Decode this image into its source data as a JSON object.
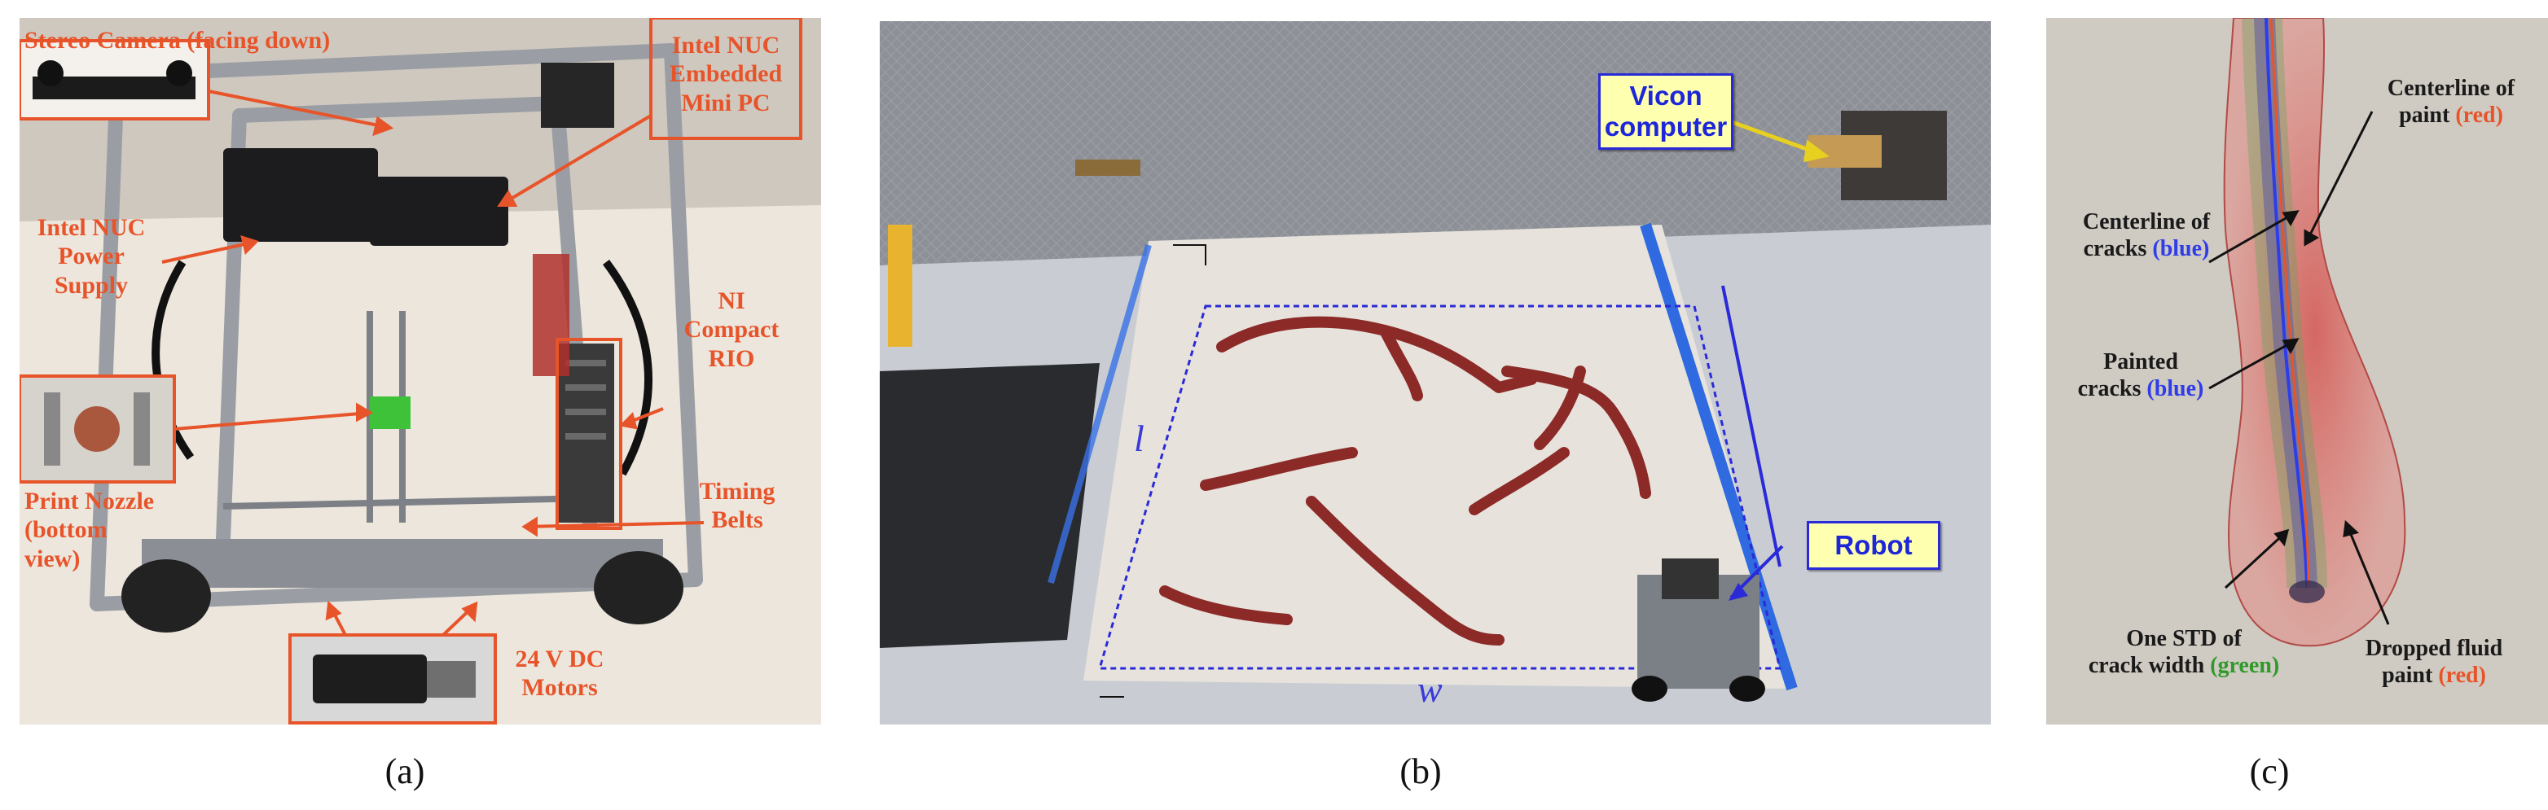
{
  "captions": {
    "a": "(a)",
    "b": "(b)",
    "c": "(c)"
  },
  "panel_a": {
    "labels": {
      "stereo_camera": "Stereo Camera (facing down)",
      "nuc_pc": [
        "Intel NUC",
        "Embedded",
        "Mini PC"
      ],
      "nuc_power": [
        "Intel NUC",
        "Power",
        "Supply"
      ],
      "ni_rio": [
        "NI",
        "Compact",
        "RIO"
      ],
      "print_nozzle": [
        "Print Nozzle",
        "(bottom",
        "view)"
      ],
      "timing_belts": [
        "Timing",
        "Belts"
      ],
      "dc_motors": [
        "24 V DC",
        "Motors"
      ]
    }
  },
  "panel_b": {
    "labels": {
      "vicon": [
        "Vicon",
        "computer"
      ],
      "robot": "Robot",
      "length": "l",
      "width": "w"
    }
  },
  "panel_c": {
    "labels": {
      "centerline_paint_1": "Centerline of",
      "centerline_paint_2": "paint",
      "centerline_paint_color": "(red)",
      "centerline_cracks_1": "Centerline of",
      "centerline_cracks_2": "cracks",
      "centerline_cracks_color": "(blue)",
      "painted_cracks_1": "Painted",
      "painted_cracks_2": "cracks",
      "painted_cracks_color": "(blue)",
      "one_std_1": "One STD of",
      "one_std_2": "crack width",
      "one_std_color": "(green)",
      "dropped_fluid_1": "Dropped fluid",
      "dropped_fluid_2": "paint",
      "dropped_fluid_color": "(red)"
    }
  },
  "colors": {
    "annotation_orange": "#e8542a",
    "annotation_blue": "#2f3de8",
    "annotation_green": "#2f9a2a",
    "crack_red": "#8c2a28",
    "dashed_region": "#2a2ad8",
    "callout_fill": "#ffffb0"
  }
}
